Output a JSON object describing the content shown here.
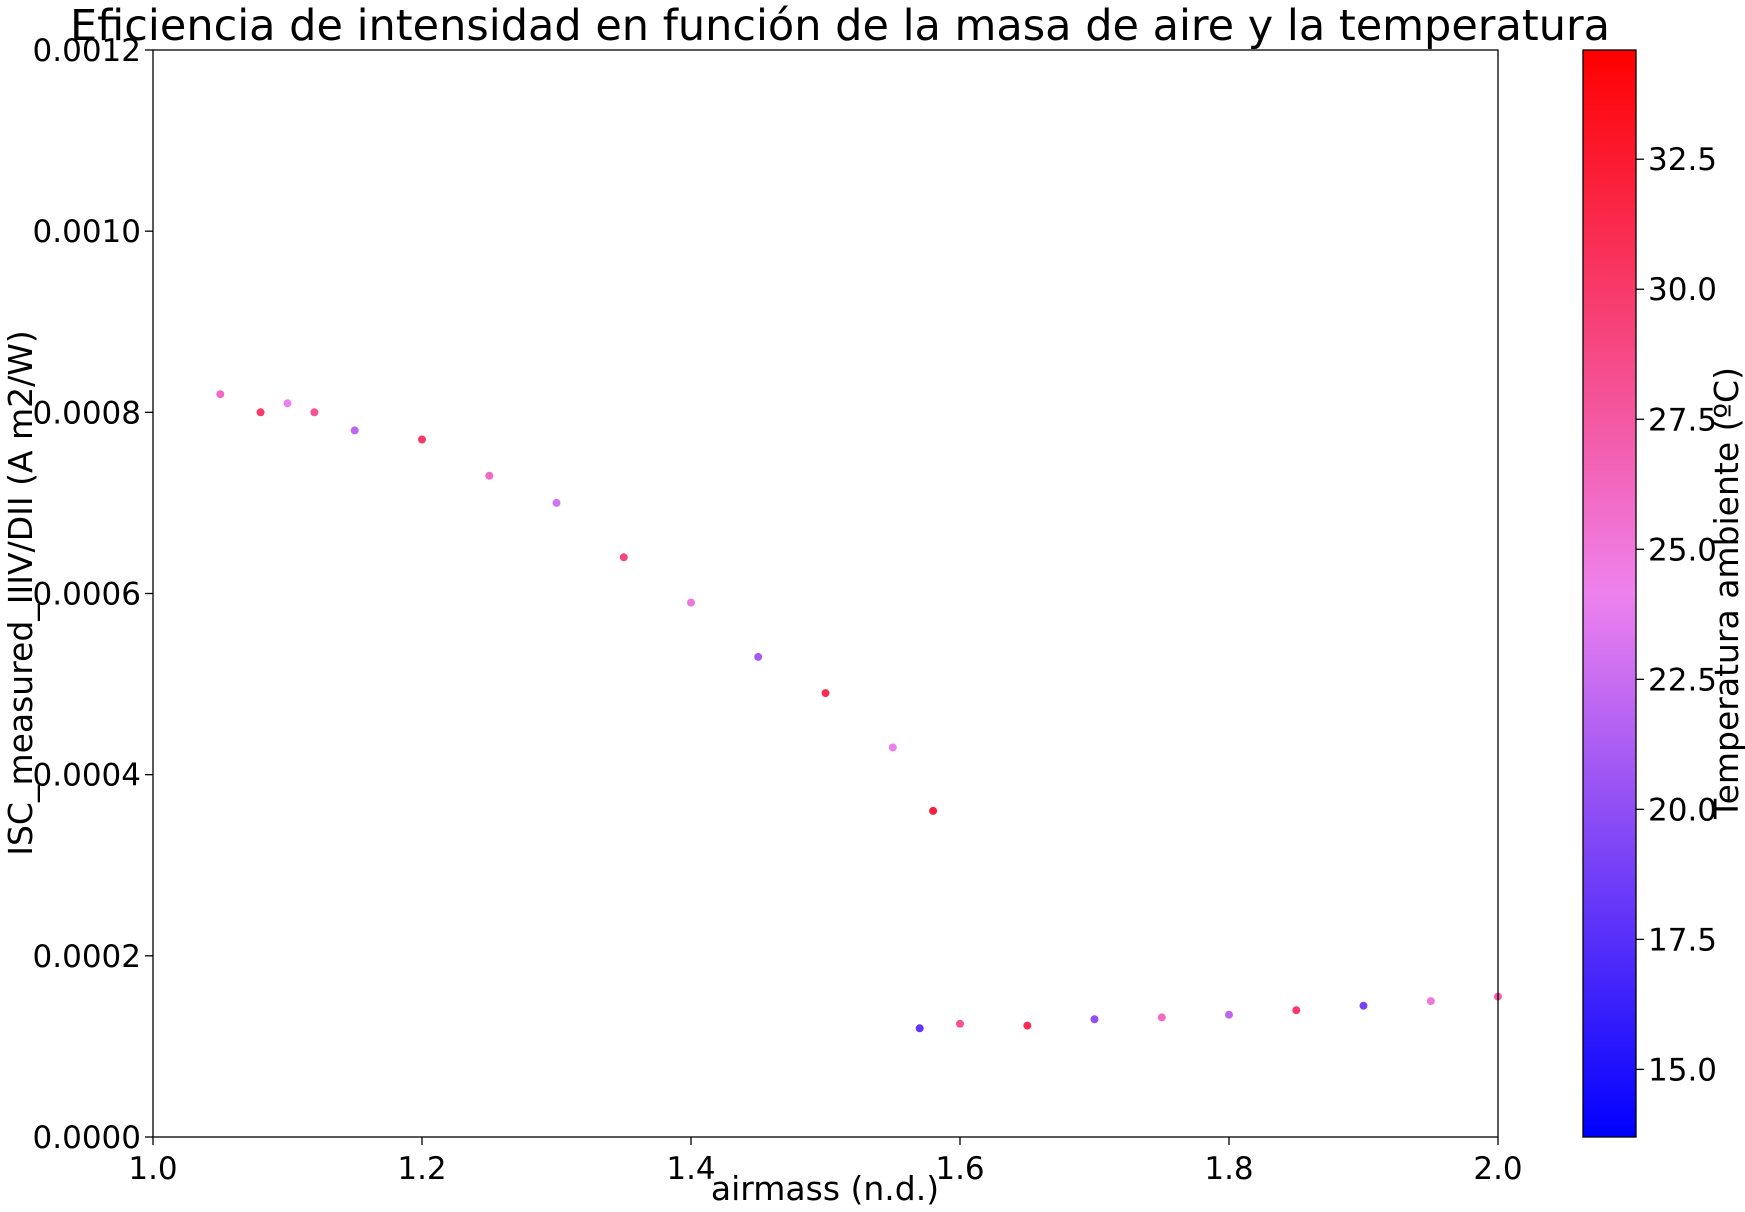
{
  "chart_data": {
    "type": "scatter",
    "title": "Eficiencia de intensidad en función de la masa de aire y la temperatura",
    "xlabel": "airmass (n.d.)",
    "ylabel": "ISC_measured_IIIV/DII (A m2/W)",
    "xlim": [
      1.0,
      2.0
    ],
    "ylim": [
      0.0,
      0.0012
    ],
    "xticks": [
      "1.0",
      "1.2",
      "1.4",
      "1.6",
      "1.8",
      "2.0"
    ],
    "yticks": [
      "0.0000",
      "0.0002",
      "0.0004",
      "0.0006",
      "0.0008",
      "0.0010",
      "0.0012"
    ],
    "grid": false,
    "colorbar": {
      "label": "Temperatura ambiente (ºC)",
      "range": [
        13.7,
        34.6
      ],
      "ticks": [
        "15.0",
        "17.5",
        "20.0",
        "22.5",
        "25.0",
        "27.5",
        "30.0",
        "32.5"
      ],
      "colors": [
        "#0000ff",
        "#ee82ee",
        "#ff0000"
      ]
    },
    "series": [
      {
        "x": [
          1.05,
          1.08,
          1.1,
          1.12,
          1.15,
          1.2,
          1.25,
          1.3,
          1.35,
          1.4,
          1.45,
          1.5,
          1.55,
          1.58
        ],
        "y": [
          0.00082,
          0.0008,
          0.00081,
          0.0008,
          0.00078,
          0.00077,
          0.00073,
          0.0007,
          0.00064,
          0.00059,
          0.00053,
          0.00049,
          0.00043,
          0.00036
        ],
        "temperature": [
          26.0,
          30.0,
          24.0,
          28.0,
          22.0,
          30.0,
          26.0,
          23.0,
          29.0,
          25.0,
          21.0,
          31.0,
          24.0,
          32.0
        ]
      },
      {
        "x": [
          1.57,
          1.6,
          1.65,
          1.7,
          1.75,
          1.8,
          1.85,
          1.9,
          1.95,
          2.0
        ],
        "y": [
          0.00012,
          0.000125,
          0.000123,
          0.00013,
          0.000132,
          0.000135,
          0.00014,
          0.000145,
          0.00015,
          0.000155
        ],
        "temperature": [
          18.0,
          28.0,
          31.0,
          20.0,
          26.0,
          22.0,
          30.0,
          19.0,
          25.0,
          27.0
        ]
      }
    ]
  }
}
